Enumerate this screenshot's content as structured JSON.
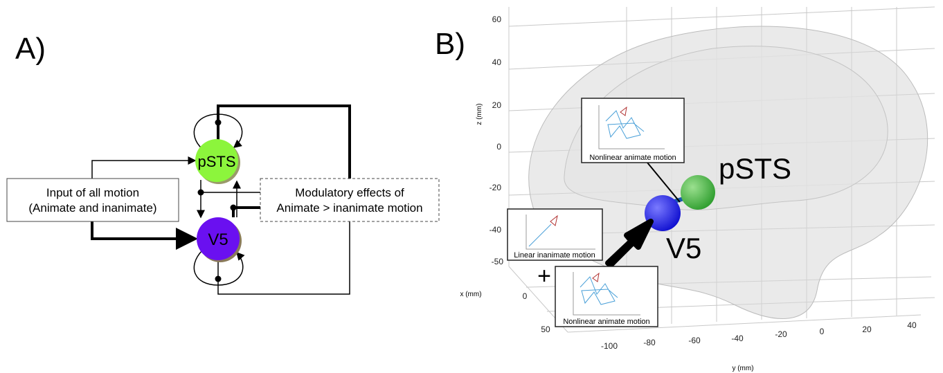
{
  "panel_a": {
    "label": "A)",
    "nodes": [
      {
        "label": "pSTS"
      },
      {
        "label": "V5"
      }
    ],
    "input_box": {
      "lines": [
        "Input of all motion",
        "(Animate and inanimate)"
      ]
    },
    "modulatory_box": {
      "lines": [
        "Modulatory effects of",
        "Animate > inanimate motion"
      ]
    }
  },
  "panel_b": {
    "label": "B)",
    "axes": {
      "z_label": "z (mm)",
      "z_ticks": [
        60,
        40,
        20,
        0,
        -20,
        -40,
        -50
      ],
      "x_label": "x (mm)",
      "x_ticks": [
        0,
        50
      ],
      "y_label": "y (mm)",
      "y_ticks": [
        -100,
        -80,
        -60,
        -40,
        -20,
        0,
        20,
        40
      ]
    },
    "regions": [
      {
        "label": "pSTS"
      },
      {
        "label": "V5"
      }
    ],
    "insets": [
      {
        "caption": "Nonlinear animate motion"
      },
      {
        "caption": "Linear inanimate motion"
      },
      {
        "caption": "Nonlinear animate motion"
      }
    ],
    "plus": "+"
  }
}
